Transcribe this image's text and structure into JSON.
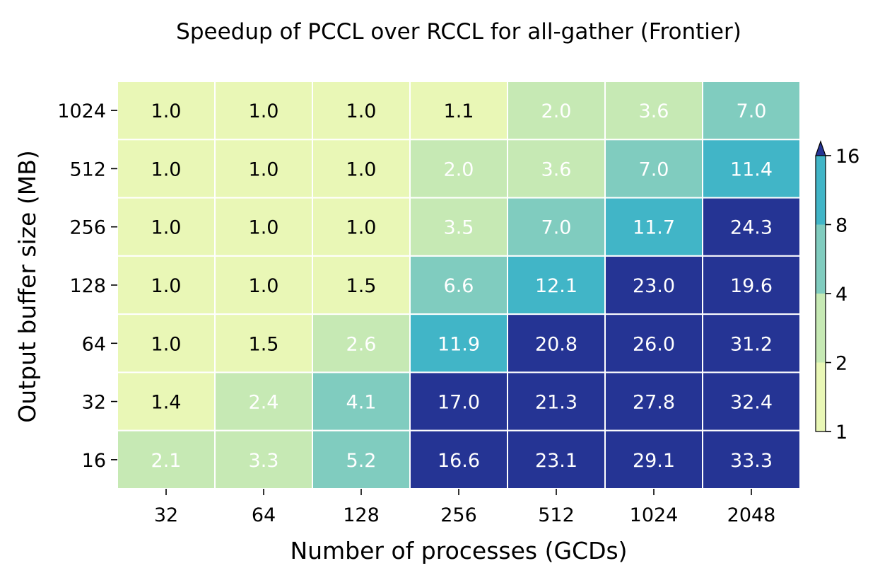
{
  "chart_data": {
    "type": "heatmap",
    "title": "Speedup of PCCL over RCCL for all-gather (Frontier)",
    "xlabel": "Number of processes (GCDs)",
    "ylabel": "Output buffer size (MB)",
    "x_categories": [
      "32",
      "64",
      "128",
      "256",
      "512",
      "1024",
      "2048"
    ],
    "y_categories": [
      "1024",
      "512",
      "256",
      "128",
      "64",
      "32",
      "16"
    ],
    "values": [
      [
        1.0,
        1.0,
        1.0,
        1.1,
        2.0,
        3.6,
        7.0
      ],
      [
        1.0,
        1.0,
        1.0,
        2.0,
        3.6,
        7.0,
        11.4
      ],
      [
        1.0,
        1.0,
        1.0,
        3.5,
        7.0,
        11.7,
        24.3
      ],
      [
        1.0,
        1.0,
        1.5,
        6.6,
        12.1,
        23.0,
        19.6
      ],
      [
        1.0,
        1.5,
        2.6,
        11.9,
        20.8,
        26.0,
        31.2
      ],
      [
        1.4,
        2.4,
        4.1,
        17.0,
        21.3,
        27.8,
        32.4
      ],
      [
        2.1,
        3.3,
        5.2,
        16.6,
        23.1,
        29.1,
        33.3
      ]
    ],
    "colorbar": {
      "ticks": [
        "1",
        "2",
        "4",
        "8",
        "16"
      ],
      "bounds": [
        1,
        2,
        4,
        8,
        16
      ],
      "colors": [
        "#e9f7b6",
        "#c6e9b4",
        "#80ccbf",
        "#41b5c7",
        "#2d7fb8",
        "#253494"
      ],
      "extend": "max",
      "scale": "log2"
    },
    "text_colors": {
      "dark": "#000000",
      "light": "#ffffff"
    }
  }
}
